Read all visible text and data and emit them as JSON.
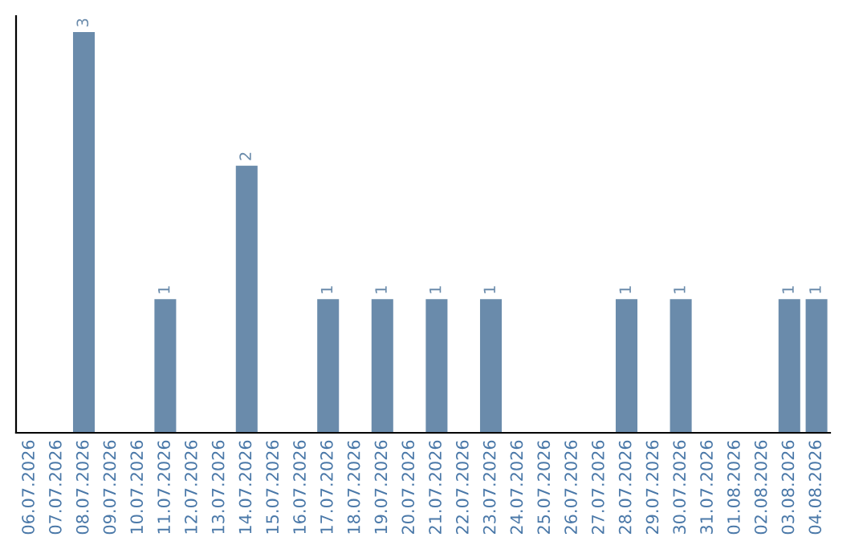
{
  "chart_data": {
    "type": "bar",
    "categories": [
      "06.07.2026",
      "07.07.2026",
      "08.07.2026",
      "09.07.2026",
      "10.07.2026",
      "11.07.2026",
      "12.07.2026",
      "13.07.2026",
      "14.07.2026",
      "15.07.2026",
      "16.07.2026",
      "17.07.2026",
      "18.07.2026",
      "19.07.2026",
      "20.07.2026",
      "21.07.2026",
      "22.07.2026",
      "23.07.2026",
      "24.07.2026",
      "25.07.2026",
      "26.07.2026",
      "27.07.2026",
      "28.07.2026",
      "29.07.2026",
      "30.07.2026",
      "31.07.2026",
      "01.08.2026",
      "02.08.2026",
      "03.08.2026",
      "04.08.2026"
    ],
    "values": [
      0,
      0,
      3,
      0,
      0,
      1,
      0,
      0,
      2,
      0,
      0,
      1,
      0,
      1,
      0,
      1,
      0,
      1,
      0,
      0,
      0,
      0,
      1,
      0,
      1,
      0,
      0,
      0,
      1,
      1
    ],
    "value_labels": [
      null,
      null,
      "3",
      null,
      null,
      "1",
      null,
      null,
      "2",
      null,
      null,
      "1",
      null,
      "1",
      null,
      "1",
      null,
      "1",
      null,
      null,
      null,
      null,
      "1",
      null,
      "1",
      null,
      null,
      null,
      "1",
      "1"
    ],
    "color": "#6a8bab",
    "tick_labels": "x",
    "grid": false,
    "legend": false
  }
}
